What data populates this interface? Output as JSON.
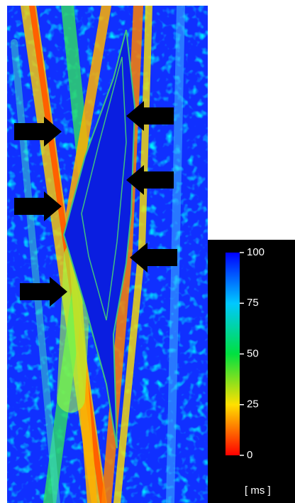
{
  "colorbar": {
    "range": [
      0,
      100
    ],
    "ticks": [
      100,
      75,
      50,
      25,
      0
    ],
    "unit": "[ ms ]"
  }
}
